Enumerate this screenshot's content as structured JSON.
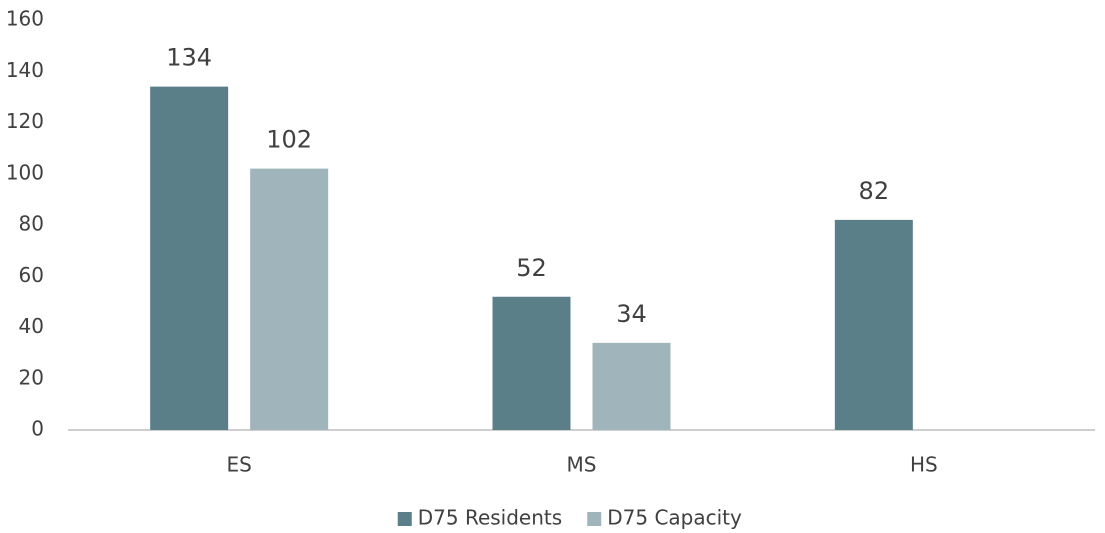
{
  "chart_data": {
    "type": "bar",
    "categories": [
      "ES",
      "MS",
      "HS"
    ],
    "series": [
      {
        "name": "D75 Residents",
        "color": "#5b7f88",
        "values": [
          134,
          52,
          82
        ]
      },
      {
        "name": "D75 Capacity",
        "color": "#a0b4bb",
        "values": [
          102,
          34,
          null
        ]
      }
    ],
    "ylim": [
      0,
      160
    ],
    "yticks": [
      0,
      20,
      40,
      60,
      80,
      100,
      120,
      140,
      160
    ],
    "grid": false,
    "legend": "bottom"
  }
}
